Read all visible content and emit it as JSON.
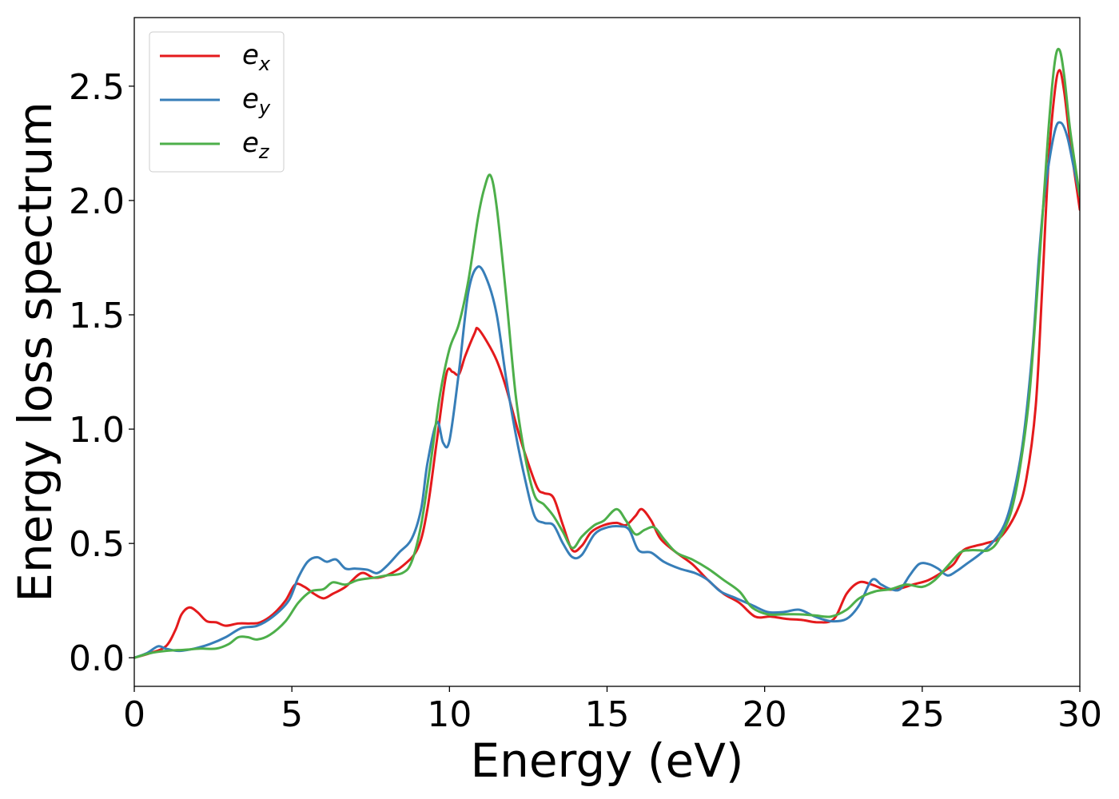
{
  "chart_data": {
    "type": "line",
    "xlabel": "Energy (eV)",
    "ylabel": "Energy loss spectrum",
    "xlim": [
      0,
      30
    ],
    "ylim": [
      -0.125,
      2.8
    ],
    "xticks": [
      0,
      5,
      10,
      15,
      20,
      25,
      30
    ],
    "xtick_labels": [
      "0",
      "5",
      "10",
      "15",
      "20",
      "25",
      "30"
    ],
    "yticks": [
      0.0,
      0.5,
      1.0,
      1.5,
      2.0,
      2.5
    ],
    "ytick_labels": [
      "0.0",
      "0.5",
      "1.0",
      "1.5",
      "2.0",
      "2.5"
    ],
    "grid": false,
    "legend_position": "top-left",
    "series": [
      {
        "name": "e_x",
        "legend_base": "e",
        "legend_sub": "x",
        "color": "#e41a1c",
        "points": [
          [
            0,
            0.0
          ],
          [
            0.5,
            0.02
          ],
          [
            1.0,
            0.05
          ],
          [
            1.3,
            0.12
          ],
          [
            1.5,
            0.19
          ],
          [
            1.75,
            0.22
          ],
          [
            2.0,
            0.2
          ],
          [
            2.3,
            0.16
          ],
          [
            2.6,
            0.155
          ],
          [
            2.9,
            0.14
          ],
          [
            3.3,
            0.15
          ],
          [
            3.7,
            0.15
          ],
          [
            4.0,
            0.155
          ],
          [
            4.4,
            0.19
          ],
          [
            4.8,
            0.25
          ],
          [
            5.1,
            0.32
          ],
          [
            5.4,
            0.31
          ],
          [
            5.7,
            0.28
          ],
          [
            6.0,
            0.26
          ],
          [
            6.3,
            0.28
          ],
          [
            6.7,
            0.31
          ],
          [
            7.2,
            0.37
          ],
          [
            7.6,
            0.35
          ],
          [
            8.0,
            0.36
          ],
          [
            8.5,
            0.4
          ],
          [
            9.0,
            0.48
          ],
          [
            9.3,
            0.65
          ],
          [
            9.6,
            0.95
          ],
          [
            9.9,
            1.24
          ],
          [
            10.1,
            1.25
          ],
          [
            10.3,
            1.24
          ],
          [
            10.5,
            1.32
          ],
          [
            10.8,
            1.42
          ],
          [
            10.9,
            1.44
          ],
          [
            11.2,
            1.38
          ],
          [
            11.5,
            1.3
          ],
          [
            11.8,
            1.18
          ],
          [
            12.2,
            0.98
          ],
          [
            12.5,
            0.85
          ],
          [
            12.8,
            0.74
          ],
          [
            13.0,
            0.72
          ],
          [
            13.3,
            0.7
          ],
          [
            13.6,
            0.58
          ],
          [
            13.9,
            0.47
          ],
          [
            14.2,
            0.49
          ],
          [
            14.5,
            0.55
          ],
          [
            14.9,
            0.58
          ],
          [
            15.3,
            0.59
          ],
          [
            15.6,
            0.58
          ],
          [
            15.9,
            0.62
          ],
          [
            16.1,
            0.65
          ],
          [
            16.4,
            0.6
          ],
          [
            16.7,
            0.52
          ],
          [
            17.2,
            0.46
          ],
          [
            17.7,
            0.41
          ],
          [
            18.2,
            0.34
          ],
          [
            18.7,
            0.28
          ],
          [
            19.2,
            0.24
          ],
          [
            19.7,
            0.18
          ],
          [
            20.2,
            0.18
          ],
          [
            20.7,
            0.17
          ],
          [
            21.2,
            0.165
          ],
          [
            21.7,
            0.155
          ],
          [
            22.2,
            0.17
          ],
          [
            22.6,
            0.28
          ],
          [
            23.0,
            0.33
          ],
          [
            23.4,
            0.32
          ],
          [
            23.8,
            0.3
          ],
          [
            24.2,
            0.3
          ],
          [
            24.7,
            0.32
          ],
          [
            25.2,
            0.34
          ],
          [
            25.7,
            0.38
          ],
          [
            26.0,
            0.41
          ],
          [
            26.3,
            0.47
          ],
          [
            26.7,
            0.49
          ],
          [
            27.0,
            0.5
          ],
          [
            27.5,
            0.53
          ],
          [
            28.0,
            0.64
          ],
          [
            28.3,
            0.78
          ],
          [
            28.6,
            1.1
          ],
          [
            28.8,
            1.6
          ],
          [
            29.0,
            2.15
          ],
          [
            29.2,
            2.47
          ],
          [
            29.35,
            2.57
          ],
          [
            29.5,
            2.48
          ],
          [
            29.7,
            2.25
          ],
          [
            30.0,
            1.96
          ]
        ]
      },
      {
        "name": "e_y",
        "legend_base": "e",
        "legend_sub": "y",
        "color": "#377eb8",
        "points": [
          [
            0,
            0.0
          ],
          [
            0.4,
            0.02
          ],
          [
            0.75,
            0.05
          ],
          [
            1.0,
            0.04
          ],
          [
            1.4,
            0.03
          ],
          [
            1.9,
            0.04
          ],
          [
            2.4,
            0.06
          ],
          [
            2.9,
            0.09
          ],
          [
            3.4,
            0.13
          ],
          [
            3.9,
            0.14
          ],
          [
            4.4,
            0.18
          ],
          [
            4.9,
            0.25
          ],
          [
            5.2,
            0.35
          ],
          [
            5.5,
            0.42
          ],
          [
            5.8,
            0.44
          ],
          [
            6.1,
            0.42
          ],
          [
            6.4,
            0.43
          ],
          [
            6.7,
            0.39
          ],
          [
            7.0,
            0.39
          ],
          [
            7.4,
            0.385
          ],
          [
            7.7,
            0.37
          ],
          [
            8.0,
            0.4
          ],
          [
            8.4,
            0.46
          ],
          [
            8.8,
            0.52
          ],
          [
            9.1,
            0.65
          ],
          [
            9.3,
            0.85
          ],
          [
            9.6,
            1.03
          ],
          [
            9.8,
            0.94
          ],
          [
            10.0,
            0.95
          ],
          [
            10.3,
            1.25
          ],
          [
            10.6,
            1.6
          ],
          [
            10.9,
            1.71
          ],
          [
            11.2,
            1.65
          ],
          [
            11.5,
            1.5
          ],
          [
            11.8,
            1.22
          ],
          [
            12.1,
            0.98
          ],
          [
            12.4,
            0.78
          ],
          [
            12.7,
            0.62
          ],
          [
            13.0,
            0.59
          ],
          [
            13.3,
            0.58
          ],
          [
            13.6,
            0.5
          ],
          [
            13.9,
            0.44
          ],
          [
            14.2,
            0.45
          ],
          [
            14.6,
            0.54
          ],
          [
            15.0,
            0.57
          ],
          [
            15.4,
            0.575
          ],
          [
            15.7,
            0.56
          ],
          [
            16.0,
            0.47
          ],
          [
            16.4,
            0.46
          ],
          [
            16.8,
            0.42
          ],
          [
            17.3,
            0.39
          ],
          [
            17.8,
            0.37
          ],
          [
            18.2,
            0.34
          ],
          [
            18.6,
            0.29
          ],
          [
            19.1,
            0.26
          ],
          [
            19.6,
            0.23
          ],
          [
            20.1,
            0.2
          ],
          [
            20.6,
            0.2
          ],
          [
            21.1,
            0.21
          ],
          [
            21.6,
            0.18
          ],
          [
            22.1,
            0.16
          ],
          [
            22.6,
            0.17
          ],
          [
            23.0,
            0.23
          ],
          [
            23.4,
            0.34
          ],
          [
            23.7,
            0.32
          ],
          [
            24.0,
            0.3
          ],
          [
            24.3,
            0.3
          ],
          [
            24.6,
            0.36
          ],
          [
            24.9,
            0.41
          ],
          [
            25.2,
            0.41
          ],
          [
            25.5,
            0.39
          ],
          [
            25.8,
            0.36
          ],
          [
            26.1,
            0.38
          ],
          [
            26.4,
            0.41
          ],
          [
            26.8,
            0.45
          ],
          [
            27.2,
            0.5
          ],
          [
            27.6,
            0.58
          ],
          [
            27.9,
            0.72
          ],
          [
            28.2,
            0.95
          ],
          [
            28.5,
            1.35
          ],
          [
            28.7,
            1.75
          ],
          [
            28.9,
            2.05
          ],
          [
            29.2,
            2.3
          ],
          [
            29.4,
            2.34
          ],
          [
            29.6,
            2.28
          ],
          [
            29.8,
            2.15
          ],
          [
            30.0,
            2.02
          ]
        ]
      },
      {
        "name": "e_z",
        "legend_base": "e",
        "legend_sub": "z",
        "color": "#4daf4a",
        "points": [
          [
            0,
            0.0
          ],
          [
            0.5,
            0.02
          ],
          [
            1.0,
            0.03
          ],
          [
            1.6,
            0.035
          ],
          [
            2.1,
            0.04
          ],
          [
            2.6,
            0.04
          ],
          [
            3.0,
            0.06
          ],
          [
            3.3,
            0.09
          ],
          [
            3.6,
            0.09
          ],
          [
            3.9,
            0.08
          ],
          [
            4.3,
            0.1
          ],
          [
            4.8,
            0.16
          ],
          [
            5.2,
            0.24
          ],
          [
            5.6,
            0.29
          ],
          [
            6.0,
            0.3
          ],
          [
            6.3,
            0.33
          ],
          [
            6.7,
            0.32
          ],
          [
            7.1,
            0.34
          ],
          [
            7.6,
            0.35
          ],
          [
            8.0,
            0.36
          ],
          [
            8.5,
            0.37
          ],
          [
            8.8,
            0.42
          ],
          [
            9.1,
            0.58
          ],
          [
            9.4,
            0.85
          ],
          [
            9.7,
            1.15
          ],
          [
            10.0,
            1.35
          ],
          [
            10.3,
            1.46
          ],
          [
            10.6,
            1.65
          ],
          [
            10.9,
            1.92
          ],
          [
            11.1,
            2.05
          ],
          [
            11.3,
            2.11
          ],
          [
            11.5,
            1.97
          ],
          [
            11.8,
            1.58
          ],
          [
            12.1,
            1.15
          ],
          [
            12.4,
            0.88
          ],
          [
            12.7,
            0.71
          ],
          [
            13.0,
            0.67
          ],
          [
            13.3,
            0.62
          ],
          [
            13.6,
            0.55
          ],
          [
            13.9,
            0.48
          ],
          [
            14.2,
            0.53
          ],
          [
            14.6,
            0.58
          ],
          [
            14.9,
            0.6
          ],
          [
            15.3,
            0.65
          ],
          [
            15.6,
            0.6
          ],
          [
            15.9,
            0.54
          ],
          [
            16.2,
            0.56
          ],
          [
            16.5,
            0.57
          ],
          [
            16.8,
            0.52
          ],
          [
            17.2,
            0.46
          ],
          [
            17.7,
            0.43
          ],
          [
            18.2,
            0.39
          ],
          [
            18.7,
            0.34
          ],
          [
            19.2,
            0.29
          ],
          [
            19.6,
            0.22
          ],
          [
            20.1,
            0.19
          ],
          [
            20.6,
            0.19
          ],
          [
            21.1,
            0.19
          ],
          [
            21.6,
            0.185
          ],
          [
            22.1,
            0.18
          ],
          [
            22.6,
            0.21
          ],
          [
            23.0,
            0.26
          ],
          [
            23.5,
            0.29
          ],
          [
            24.0,
            0.3
          ],
          [
            24.5,
            0.32
          ],
          [
            25.0,
            0.31
          ],
          [
            25.4,
            0.34
          ],
          [
            25.8,
            0.4
          ],
          [
            26.2,
            0.46
          ],
          [
            26.5,
            0.47
          ],
          [
            26.8,
            0.47
          ],
          [
            27.1,
            0.47
          ],
          [
            27.4,
            0.51
          ],
          [
            27.8,
            0.63
          ],
          [
            28.1,
            0.83
          ],
          [
            28.4,
            1.15
          ],
          [
            28.7,
            1.7
          ],
          [
            29.0,
            2.3
          ],
          [
            29.2,
            2.6
          ],
          [
            29.35,
            2.66
          ],
          [
            29.5,
            2.55
          ],
          [
            29.7,
            2.3
          ],
          [
            30.0,
            2.02
          ]
        ]
      }
    ]
  }
}
